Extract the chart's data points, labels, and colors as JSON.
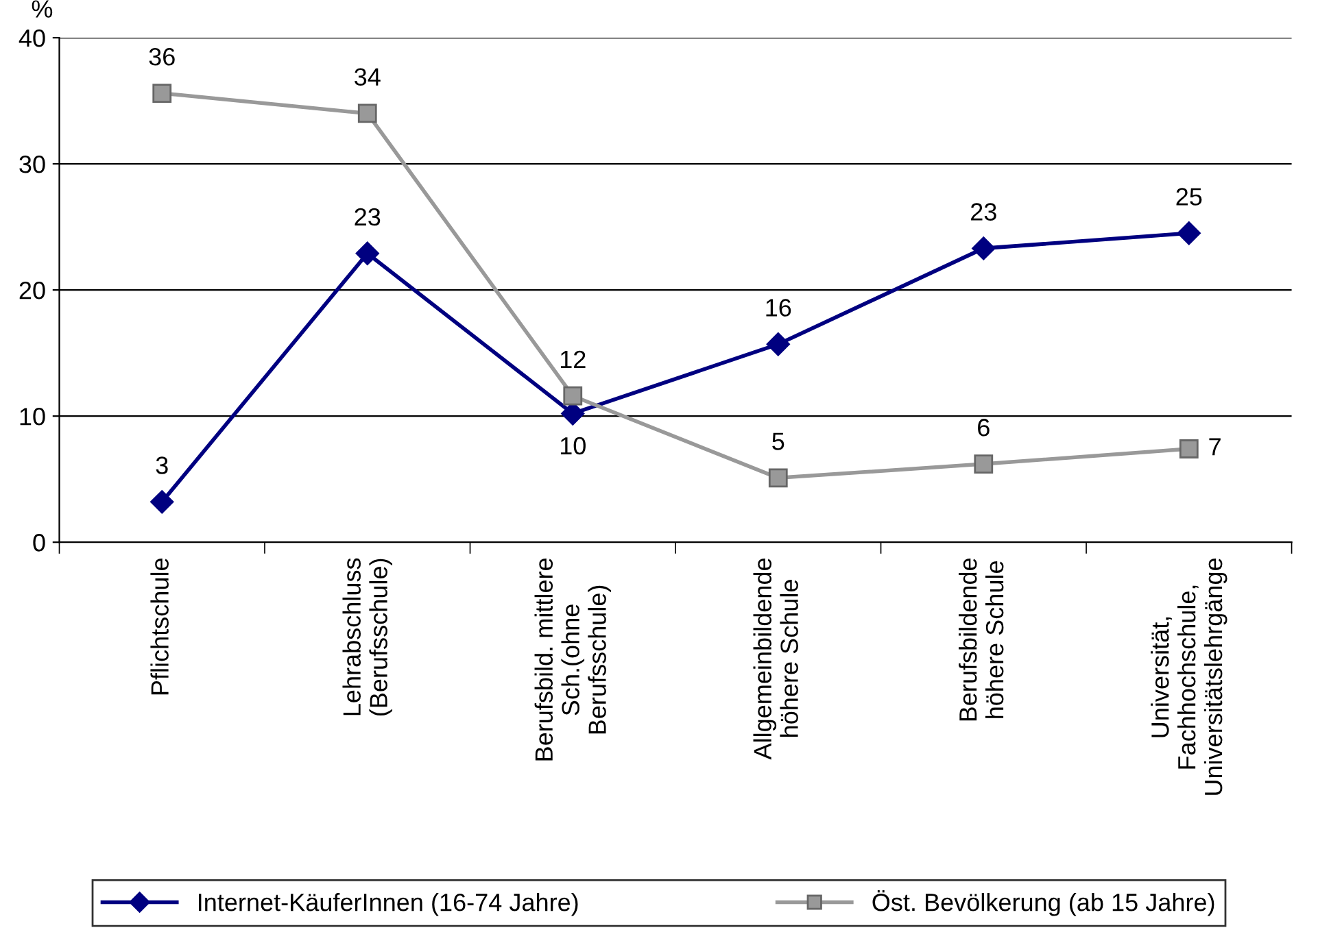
{
  "chart_data": {
    "type": "line",
    "ylabel": "%",
    "categories": [
      "Pflichtschule",
      "Lehrabschluss\n(Berufsschule)",
      "Berufsbild. mittlere\nSch.(ohne\nBerufsschule)",
      "Allgemeinbildende\nhöhere Schule",
      "Berufsbildende\nhöhere Schule",
      "Universität,\nFachhochschule,\nUniversitätslehrgänge"
    ],
    "series": [
      {
        "name": "Internet-KäuferInnen (16-74 Jahre)",
        "color": "#000080",
        "marker": "diamond",
        "values": [
          3.2,
          22.9,
          10.2,
          15.7,
          23.3,
          24.5
        ],
        "value_labels": [
          "3",
          "23",
          "10",
          "16",
          "23",
          "25"
        ]
      },
      {
        "name": "Öst. Bevölkerung (ab 15 Jahre)",
        "color": "#999999",
        "marker": "square",
        "values": [
          35.6,
          34.0,
          11.6,
          5.1,
          6.2,
          7.4
        ],
        "value_labels": [
          "36",
          "34",
          "12",
          "5",
          "6",
          "7"
        ]
      }
    ],
    "ylim": [
      0,
      40
    ],
    "yticks": [
      0,
      10,
      20,
      30,
      40
    ],
    "grid": "y",
    "legend": "bottom",
    "line_style": "solid"
  }
}
